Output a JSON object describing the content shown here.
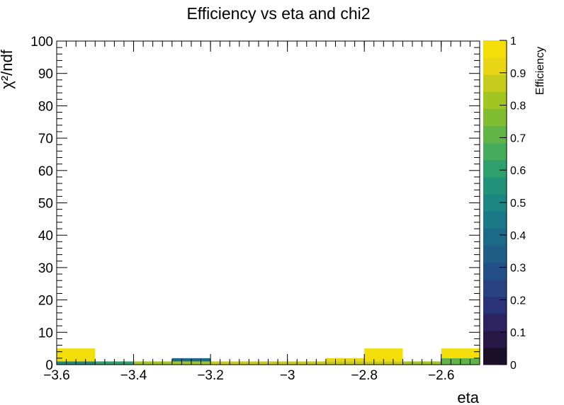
{
  "chart_data": {
    "type": "heatmap",
    "title": "Efficiency vs eta and chi2",
    "xlabel": "eta",
    "ylabel": "χ²/ndf",
    "xlim": [
      -3.6,
      -2.5
    ],
    "ylim": [
      0,
      100
    ],
    "x_ticks": [
      -3.6,
      -3.4,
      -3.2,
      -3.0,
      -2.8,
      -2.6
    ],
    "x_tick_labels": [
      "−3.6",
      "−3.4",
      "−3.2",
      "−3",
      "−2.8",
      "−2.6"
    ],
    "y_ticks": [
      0,
      10,
      20,
      30,
      40,
      50,
      60,
      70,
      80,
      90,
      100
    ],
    "y_tick_labels": [
      "0",
      "10",
      "20",
      "30",
      "40",
      "50",
      "60",
      "70",
      "80",
      "90",
      "100"
    ],
    "colorbar": {
      "label": "Efficiency",
      "range": [
        0,
        1
      ],
      "ticks": [
        0,
        0.1,
        0.2,
        0.3,
        0.4,
        0.5,
        0.6,
        0.7,
        0.8,
        0.9,
        1
      ],
      "tick_labels": [
        "0",
        "0.1",
        "0.2",
        "0.3",
        "0.4",
        "0.5",
        "0.6",
        "0.7",
        "0.8",
        "0.9",
        "1"
      ],
      "palette": [
        "#1c0f28",
        "#271945",
        "#2c2360",
        "#2a3278",
        "#284282",
        "#234f87",
        "#205d87",
        "#1d6a87",
        "#1b7886",
        "#1d8682",
        "#22937a",
        "#2fa06c",
        "#46ab5b",
        "#62b446",
        "#80bd31",
        "#a2c522",
        "#c5cc1c",
        "#e8d617",
        "#f4de0a"
      ]
    },
    "cells": [
      {
        "x0": -3.6,
        "x1": -3.5,
        "y0": 0,
        "y1": 1,
        "value": 0.5
      },
      {
        "x0": -3.6,
        "x1": -3.5,
        "y0": 1,
        "y1": 5,
        "value": 1.0
      },
      {
        "x0": -3.5,
        "x1": -3.4,
        "y0": 0,
        "y1": 1,
        "value": 0.6
      },
      {
        "x0": -3.4,
        "x1": -3.3,
        "y0": 0,
        "y1": 1,
        "value": 0.8
      },
      {
        "x0": -3.3,
        "x1": -3.2,
        "y0": 0,
        "y1": 1,
        "value": 0.8
      },
      {
        "x0": -3.3,
        "x1": -3.2,
        "y0": 1,
        "y1": 2,
        "value": 0.4
      },
      {
        "x0": -3.2,
        "x1": -3.1,
        "y0": 0,
        "y1": 1,
        "value": 0.85
      },
      {
        "x0": -3.1,
        "x1": -3.0,
        "y0": 0,
        "y1": 1,
        "value": 0.85
      },
      {
        "x0": -3.0,
        "x1": -2.9,
        "y0": 0,
        "y1": 1,
        "value": 0.85
      },
      {
        "x0": -2.9,
        "x1": -2.8,
        "y0": 0,
        "y1": 1,
        "value": 0.85
      },
      {
        "x0": -2.9,
        "x1": -2.8,
        "y0": 1,
        "y1": 2,
        "value": 0.9
      },
      {
        "x0": -2.8,
        "x1": -2.7,
        "y0": 0,
        "y1": 1,
        "value": 0.85
      },
      {
        "x0": -2.8,
        "x1": -2.7,
        "y0": 1,
        "y1": 5,
        "value": 1.0
      },
      {
        "x0": -2.7,
        "x1": -2.6,
        "y0": 0,
        "y1": 1,
        "value": 0.8
      },
      {
        "x0": -2.6,
        "x1": -2.5,
        "y0": 0,
        "y1": 2,
        "value": 0.72
      },
      {
        "x0": -2.6,
        "x1": -2.5,
        "y0": 2,
        "y1": 5,
        "value": 1.0
      }
    ]
  }
}
